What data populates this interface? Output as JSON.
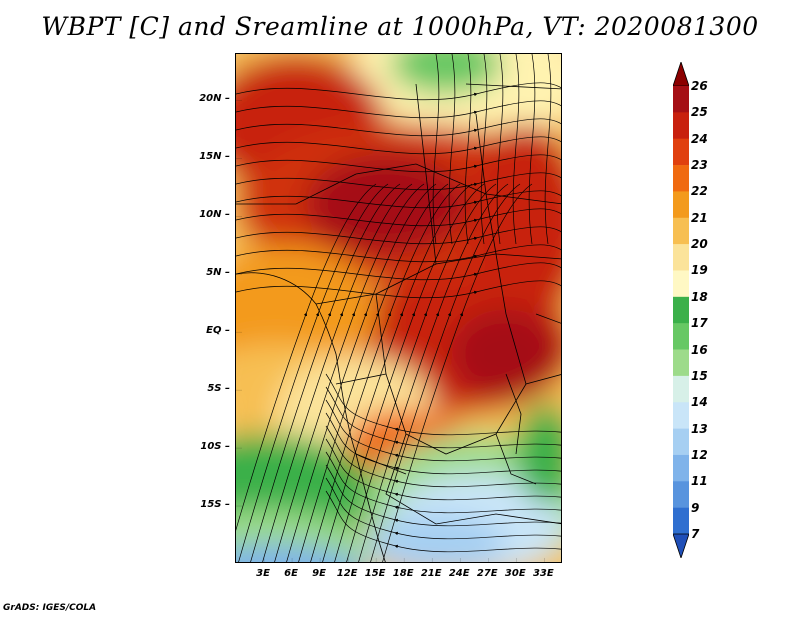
{
  "title": "WBPT [C] and Sreamline at 1000hPa, VT: 2020081300",
  "credit": "GrADS: IGES/COLA",
  "map": {
    "region": "Central and southern-central Africa",
    "lon_range": [
      0,
      35
    ],
    "lat_range": [
      -20,
      24
    ],
    "lat_ticks": [
      {
        "label": "20N",
        "lat": 20
      },
      {
        "label": "15N",
        "lat": 15
      },
      {
        "label": "10N",
        "lat": 10
      },
      {
        "label": "5N",
        "lat": 5
      },
      {
        "label": "EQ",
        "lat": 0
      },
      {
        "label": "5S",
        "lat": -5
      },
      {
        "label": "10S",
        "lat": -10
      },
      {
        "label": "15S",
        "lat": -15
      }
    ],
    "lon_ticks": [
      {
        "label": "3E",
        "lon": 3
      },
      {
        "label": "6E",
        "lon": 6
      },
      {
        "label": "9E",
        "lon": 9
      },
      {
        "label": "12E",
        "lon": 12
      },
      {
        "label": "15E",
        "lon": 15
      },
      {
        "label": "18E",
        "lon": 18
      },
      {
        "label": "21E",
        "lon": 21
      },
      {
        "label": "24E",
        "lon": 24
      },
      {
        "label": "27E",
        "lon": 27
      },
      {
        "label": "30E",
        "lon": 30
      },
      {
        "label": "33E",
        "lon": 33
      }
    ]
  },
  "colorbar": {
    "labels": [
      "26",
      "25",
      "24",
      "23",
      "22",
      "21",
      "20",
      "19",
      "18",
      "17",
      "16",
      "15",
      "14",
      "13",
      "12",
      "11",
      "9",
      "7"
    ],
    "colors": [
      "#a50f15",
      "#c8200e",
      "#e0400f",
      "#f06a10",
      "#f39a1c",
      "#f7bf52",
      "#fbe39a",
      "#fff8c4",
      "#3bb04a",
      "#67c864",
      "#9ddb8a",
      "#d7f0e8",
      "#c9e5f8",
      "#a6cff2",
      "#7fb3ea",
      "#5894de",
      "#2f6fd0"
    ],
    "top_arrow_color": "#8b0000",
    "bottom_arrow_color": "#1f4fb8"
  }
}
